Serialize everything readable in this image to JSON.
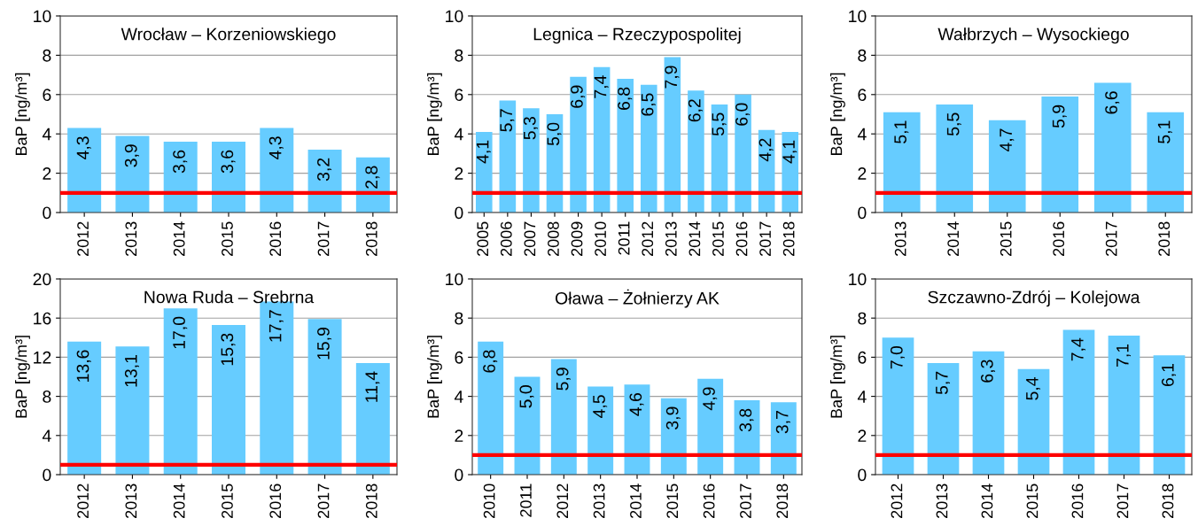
{
  "chart_data": [
    {
      "type": "bar",
      "title": "Wrocław – Korzeniowskiego",
      "ylabel": "BaP [ng/m³]",
      "categories": [
        "2012",
        "2013",
        "2014",
        "2015",
        "2016",
        "2017",
        "2018"
      ],
      "values": [
        4.3,
        3.9,
        3.6,
        3.6,
        4.3,
        3.2,
        2.8
      ],
      "value_labels": [
        "4,3",
        "3,9",
        "3,6",
        "3,6",
        "4,3",
        "3,2",
        "2,8"
      ],
      "color": "#66ccff",
      "ylim": [
        0,
        10
      ],
      "yticks": [
        0,
        2,
        4,
        6,
        8,
        10
      ],
      "grid": "y",
      "ref_lines": [
        {
          "axis": "y",
          "value": 1,
          "color": "#ff0000"
        }
      ]
    },
    {
      "type": "bar",
      "title": "Legnica – Rzeczypospolitej",
      "ylabel": "BaP [ng/m³]",
      "categories": [
        "2005",
        "2006",
        "2007",
        "2008",
        "2009",
        "2010",
        "2011",
        "2012",
        "2013",
        "2014",
        "2015",
        "2016",
        "2017",
        "2018"
      ],
      "values": [
        4.1,
        5.7,
        5.3,
        5.0,
        6.9,
        7.4,
        6.8,
        6.5,
        7.9,
        6.2,
        5.5,
        6.0,
        4.2,
        4.1
      ],
      "value_labels": [
        "4,1",
        "5,7",
        "5,3",
        "5,0",
        "6,9",
        "7,4",
        "6,8",
        "6,5",
        "7,9",
        "6,2",
        "5,5",
        "6,0",
        "4,2",
        "4,1"
      ],
      "color": "#66ccff",
      "ylim": [
        0,
        10
      ],
      "yticks": [
        0,
        2,
        4,
        6,
        8,
        10
      ],
      "grid": "y",
      "ref_lines": [
        {
          "axis": "y",
          "value": 1,
          "color": "#ff0000"
        }
      ]
    },
    {
      "type": "bar",
      "title": "Wałbrzych – Wysockiego",
      "ylabel": "BaP [ng/m³]",
      "categories": [
        "2013",
        "2014",
        "2015",
        "2016",
        "2017",
        "2018"
      ],
      "values": [
        5.1,
        5.5,
        4.7,
        5.9,
        6.6,
        5.1
      ],
      "value_labels": [
        "5,1",
        "5,5",
        "4,7",
        "5,9",
        "6,6",
        "5,1"
      ],
      "color": "#66ccff",
      "ylim": [
        0,
        10
      ],
      "yticks": [
        0,
        2,
        4,
        6,
        8,
        10
      ],
      "grid": "y",
      "ref_lines": [
        {
          "axis": "y",
          "value": 1,
          "color": "#ff0000"
        }
      ]
    },
    {
      "type": "bar",
      "title": "Nowa Ruda – Srebrna",
      "ylabel": "BaP [ng/m³]",
      "categories": [
        "2012",
        "2013",
        "2014",
        "2015",
        "2016",
        "2017",
        "2018"
      ],
      "values": [
        13.6,
        13.1,
        17.0,
        15.3,
        17.7,
        15.9,
        11.4
      ],
      "value_labels": [
        "13,6",
        "13,1",
        "17,0",
        "15,3",
        "17,7",
        "15,9",
        "11,4"
      ],
      "color": "#66ccff",
      "ylim": [
        0,
        20
      ],
      "yticks": [
        0,
        4,
        8,
        12,
        16,
        20
      ],
      "grid": "y",
      "ref_lines": [
        {
          "axis": "y",
          "value": 1,
          "color": "#ff0000"
        }
      ]
    },
    {
      "type": "bar",
      "title": "Oława – Żołnierzy AK",
      "ylabel": "BaP [ng/m³]",
      "categories": [
        "2010",
        "2011",
        "2012",
        "2013",
        "2014",
        "2015",
        "2016",
        "2017",
        "2018"
      ],
      "values": [
        6.8,
        5.0,
        5.9,
        4.5,
        4.6,
        3.9,
        4.9,
        3.8,
        3.7
      ],
      "value_labels": [
        "6,8",
        "5,0",
        "5,9",
        "4,5",
        "4,6",
        "3,9",
        "4,9",
        "3,8",
        "3,7"
      ],
      "color": "#66ccff",
      "ylim": [
        0,
        10
      ],
      "yticks": [
        0,
        2,
        4,
        6,
        8,
        10
      ],
      "grid": "y",
      "ref_lines": [
        {
          "axis": "y",
          "value": 1,
          "color": "#ff0000"
        }
      ]
    },
    {
      "type": "bar",
      "title": "Szczawno-Zdrój – Kolejowa",
      "ylabel": "BaP [ng/m³]",
      "categories": [
        "2012",
        "2013",
        "2014",
        "2015",
        "2016",
        "2017",
        "2018"
      ],
      "values": [
        7.0,
        5.7,
        6.3,
        5.4,
        7.4,
        7.1,
        6.1
      ],
      "value_labels": [
        "7,0",
        "5,7",
        "6,3",
        "5,4",
        "7,4",
        "7,1",
        "6,1"
      ],
      "color": "#66ccff",
      "ylim": [
        0,
        10
      ],
      "yticks": [
        0,
        2,
        4,
        6,
        8,
        10
      ],
      "grid": "y",
      "ref_lines": [
        {
          "axis": "y",
          "value": 1,
          "color": "#ff0000"
        }
      ]
    }
  ]
}
